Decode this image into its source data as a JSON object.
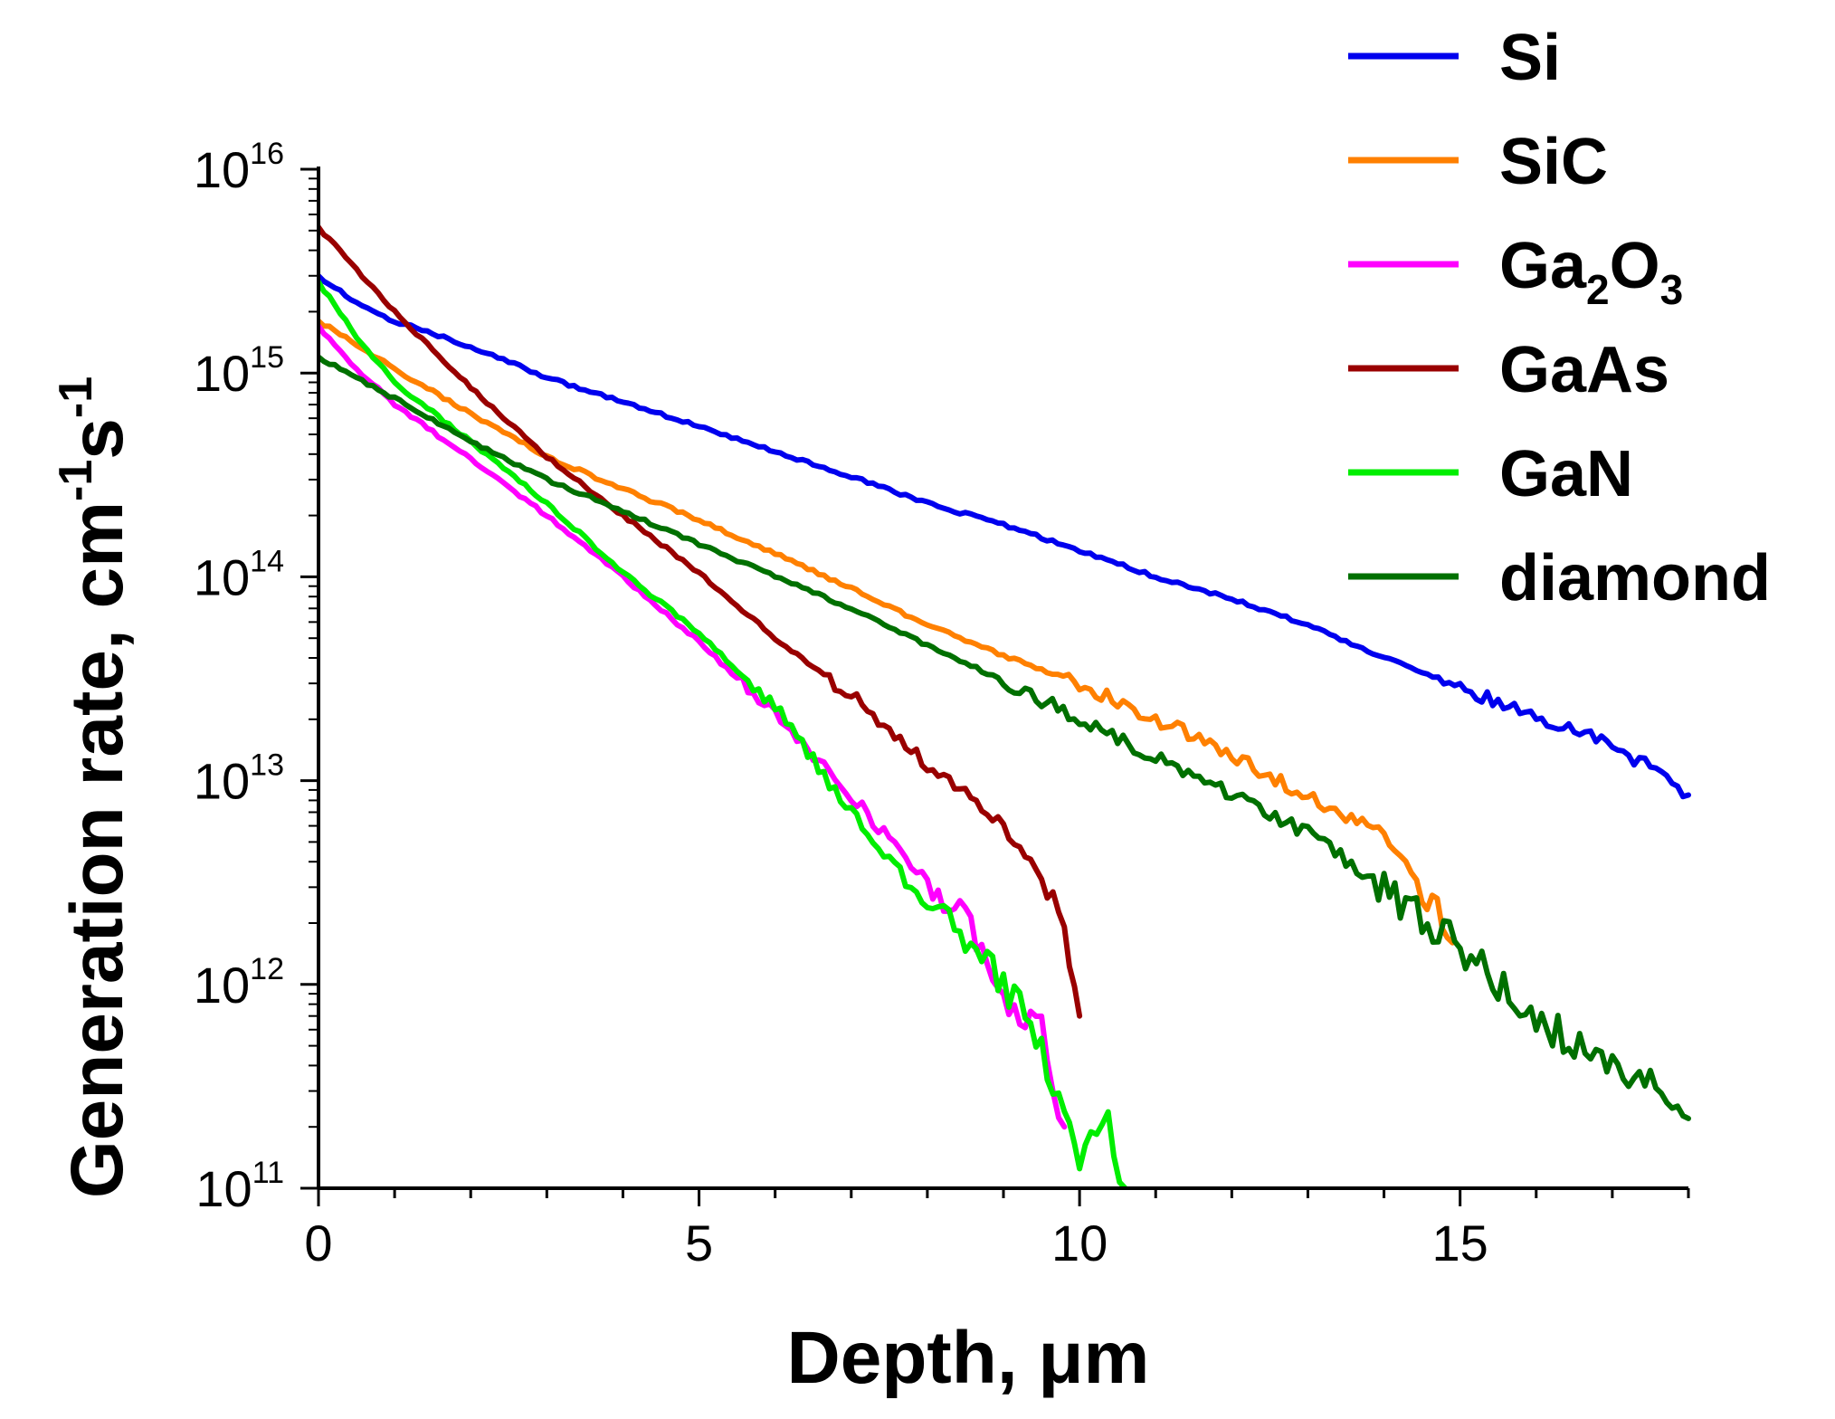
{
  "chart_data": {
    "type": "line",
    "title": "",
    "xlabel": "Depth, μm",
    "ylabel": {
      "main": "Generation rate, cm",
      "exp1": "-1",
      "mid": "s",
      "exp2": "-1"
    },
    "xscale": "linear",
    "yscale": "log",
    "xlim": [
      0,
      18
    ],
    "ylim": [
      100000000000.0,
      1e+16
    ],
    "x_ticks": [
      {
        "value": 0,
        "label": "0"
      },
      {
        "value": 5,
        "label": "5"
      },
      {
        "value": 10,
        "label": "10"
      },
      {
        "value": 15,
        "label": "15"
      }
    ],
    "y_ticks": [
      {
        "value": 100000000000.0,
        "base": "10",
        "exp": "11"
      },
      {
        "value": 1000000000000.0,
        "base": "10",
        "exp": "12"
      },
      {
        "value": 10000000000000.0,
        "base": "10",
        "exp": "13"
      },
      {
        "value": 100000000000000.0,
        "base": "10",
        "exp": "14"
      },
      {
        "value": 1000000000000000.0,
        "base": "10",
        "exp": "15"
      },
      {
        "value": 1e+16,
        "base": "10",
        "exp": "16"
      }
    ],
    "legend_position": "top-right",
    "series": [
      {
        "name": "Si",
        "label_parts": [
          {
            "text": "Si"
          }
        ],
        "color": "#0000ee",
        "x": [
          0,
          0.5,
          1,
          2,
          3,
          4,
          5,
          6,
          7,
          8,
          9,
          10,
          11,
          12,
          13,
          14,
          15,
          16,
          16.5,
          17,
          17.5,
          18
        ],
        "y": [
          3000000000000000.0,
          2200000000000000.0,
          1800000000000000.0,
          1350000000000000.0,
          950000000000000.0,
          720000000000000.0,
          550000000000000.0,
          410000000000000.0,
          310000000000000.0,
          230000000000000.0,
          180000000000000.0,
          135000000000000.0,
          100000000000000.0,
          78000000000000.0,
          58000000000000.0,
          40000000000000.0,
          29000000000000.0,
          20000000000000.0,
          18000000000000.0,
          15000000000000.0,
          11500000000000.0,
          8500000000000.0
        ]
      },
      {
        "name": "SiC",
        "label_parts": [
          {
            "text": "SiC"
          }
        ],
        "color": "#ff8000",
        "x": [
          0,
          1,
          2,
          3,
          4,
          5,
          6,
          7,
          8,
          9,
          10,
          11,
          12,
          13,
          13.5,
          14,
          14.5,
          14.9
        ],
        "y": [
          1800000000000000.0,
          1050000000000000.0,
          630000000000000.0,
          390000000000000.0,
          270000000000000.0,
          190000000000000.0,
          130000000000000.0,
          88000000000000.0,
          58000000000000.0,
          41000000000000.0,
          30000000000000.0,
          20000000000000.0,
          13500000000000.0,
          8300000000000.0,
          6800000000000.0,
          5500000000000.0,
          3000000000000.0,
          1600000000000.0
        ]
      },
      {
        "name": "Ga2O3",
        "label_parts": [
          {
            "text": "Ga"
          },
          {
            "text": "2",
            "sub": true
          },
          {
            "text": "O"
          },
          {
            "text": "3",
            "sub": true
          }
        ],
        "color": "#ff00ff",
        "x": [
          0,
          0.5,
          1,
          2,
          3,
          4,
          5,
          6,
          7,
          8,
          8.5,
          9,
          9.5,
          9.8
        ],
        "y": [
          1700000000000000.0,
          1050000000000000.0,
          700000000000000.0,
          380000000000000.0,
          200000000000000.0,
          100000000000000.0,
          48000000000000.0,
          21000000000000.0,
          8500000000000.0,
          3200000000000.0,
          2000000000000.0,
          900000000000.0,
          600000000000.0,
          200000000000.0
        ]
      },
      {
        "name": "GaAs",
        "label_parts": [
          {
            "text": "GaAs"
          }
        ],
        "color": "#990000",
        "x": [
          0,
          0.5,
          1,
          2,
          3,
          4,
          5,
          6,
          7,
          8,
          8.5,
          9,
          9.5,
          9.8,
          10
        ],
        "y": [
          5200000000000000.0,
          3200000000000000.0,
          2000000000000000.0,
          850000000000000.0,
          390000000000000.0,
          200000000000000.0,
          105000000000000.0,
          50000000000000.0,
          26000000000000.0,
          12000000000000.0,
          9000000000000.0,
          6000000000000.0,
          3400000000000.0,
          2000000000000.0,
          700000000000.0
        ]
      },
      {
        "name": "GaN",
        "label_parts": [
          {
            "text": "GaN"
          }
        ],
        "color": "#00ee00",
        "x": [
          0,
          0.5,
          1,
          2,
          3,
          4,
          5,
          6,
          7,
          8,
          8.5,
          9,
          9.5,
          9.8,
          10,
          10.3,
          10.6
        ],
        "y": [
          2800000000000000.0,
          1500000000000000.0,
          900000000000000.0,
          460000000000000.0,
          230000000000000.0,
          105000000000000.0,
          53000000000000.0,
          23000000000000.0,
          7000000000000.0,
          2400000000000.0,
          1600000000000.0,
          1000000000000.0,
          500000000000.0,
          200000000000.0,
          150000000000.0,
          250000000000.0,
          100000000000.0
        ]
      },
      {
        "name": "diamond",
        "label_parts": [
          {
            "text": "diamond"
          }
        ],
        "color": "#007000",
        "x": [
          0,
          1,
          2,
          3,
          4,
          5,
          6,
          7,
          8,
          9,
          10,
          11,
          12,
          13,
          14,
          15,
          15.5,
          16,
          16.5,
          17,
          17.5,
          18
        ],
        "y": [
          1200000000000000.0,
          750000000000000.0,
          460000000000000.0,
          300000000000000.0,
          210000000000000.0,
          145000000000000.0,
          100000000000000.0,
          70000000000000.0,
          46000000000000.0,
          31000000000000.0,
          20000000000000.0,
          13000000000000.0,
          8500000000000.0,
          5500000000000.0,
          3000000000000.0,
          1500000000000.0,
          1000000000000.0,
          700000000000.0,
          500000000000.0,
          420000000000.0,
          350000000000.0,
          220000000000.0
        ]
      }
    ]
  }
}
